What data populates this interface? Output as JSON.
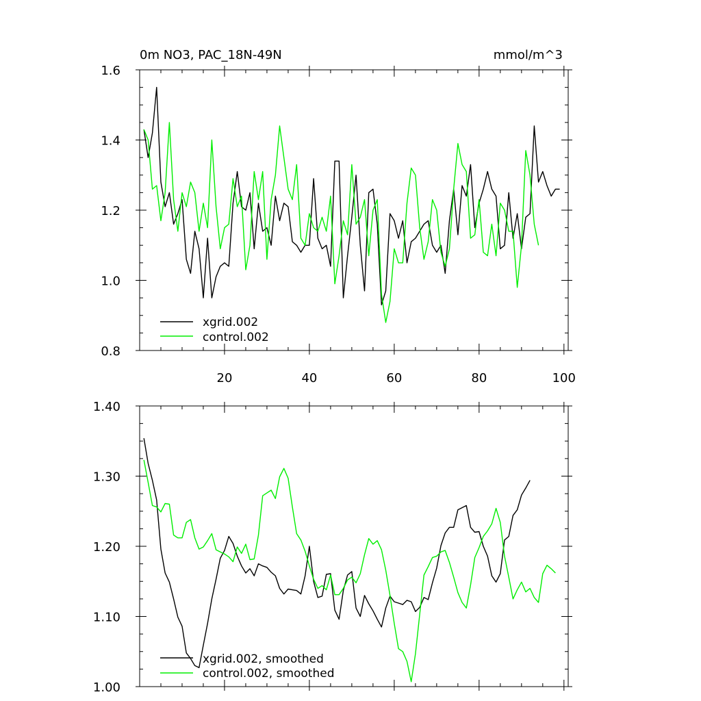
{
  "chart_data": [
    {
      "type": "line",
      "title": "0m NO3, PAC_18N-49N",
      "units": "mmol/m^3",
      "xlabel": "",
      "ylabel": "",
      "xlim": [
        0,
        101
      ],
      "ylim": [
        0.8,
        1.6
      ],
      "xticks": [
        20,
        40,
        60,
        80,
        100
      ],
      "xtick_labels": [
        "20",
        "40",
        "60",
        "80",
        "100"
      ],
      "yticks": [
        0.8,
        1.0,
        1.2,
        1.4,
        1.6
      ],
      "ytick_labels": [
        "0.8",
        "1.0",
        "1.2",
        "1.4",
        "1.6"
      ],
      "legend_position": "bottom-left",
      "series": [
        {
          "name": "xgrid.002",
          "color": "#000000",
          "values": [
            1.43,
            1.35,
            1.42,
            1.55,
            1.28,
            1.21,
            1.25,
            1.16,
            1.19,
            1.23,
            1.06,
            1.02,
            1.14,
            1.09,
            0.95,
            1.12,
            0.95,
            1.01,
            1.04,
            1.05,
            1.04,
            1.22,
            1.31,
            1.21,
            1.2,
            1.25,
            1.09,
            1.22,
            1.14,
            1.15,
            1.1,
            1.24,
            1.17,
            1.22,
            1.21,
            1.11,
            1.1,
            1.08,
            1.1,
            1.1,
            1.29,
            1.12,
            1.09,
            1.1,
            1.04,
            1.34,
            1.34,
            0.95,
            1.07,
            1.18,
            1.3,
            1.1,
            0.97,
            1.25,
            1.26,
            1.16,
            0.93,
            0.97,
            1.19,
            1.17,
            1.12,
            1.17,
            1.05,
            1.11,
            1.12,
            1.14,
            1.16,
            1.17,
            1.1,
            1.08,
            1.1,
            1.02,
            1.17,
            1.26,
            1.13,
            1.27,
            1.24,
            1.33,
            1.15,
            1.22,
            1.26,
            1.31,
            1.26,
            1.24,
            1.09,
            1.1,
            1.25,
            1.12,
            1.19,
            1.09,
            1.18,
            1.19,
            1.44,
            1.28,
            1.31,
            1.27,
            1.24,
            1.26,
            1.26
          ]
        },
        {
          "name": "control.002",
          "color": "#00ee00",
          "values": [
            1.43,
            1.4,
            1.26,
            1.27,
            1.17,
            1.25,
            1.45,
            1.23,
            1.14,
            1.25,
            1.21,
            1.28,
            1.25,
            1.14,
            1.22,
            1.15,
            1.4,
            1.21,
            1.09,
            1.15,
            1.16,
            1.29,
            1.21,
            1.24,
            1.03,
            1.1,
            1.31,
            1.23,
            1.31,
            1.06,
            1.23,
            1.3,
            1.44,
            1.35,
            1.26,
            1.23,
            1.33,
            1.12,
            1.1,
            1.19,
            1.15,
            1.14,
            1.18,
            1.14,
            1.24,
            0.99,
            1.07,
            1.17,
            1.13,
            1.33,
            1.16,
            1.18,
            1.23,
            1.07,
            1.2,
            1.23,
            0.96,
            0.88,
            0.94,
            1.09,
            1.05,
            1.05,
            1.22,
            1.32,
            1.3,
            1.15,
            1.06,
            1.11,
            1.23,
            1.2,
            1.08,
            1.04,
            1.09,
            1.26,
            1.39,
            1.33,
            1.31,
            1.12,
            1.13,
            1.23,
            1.08,
            1.07,
            1.16,
            1.07,
            1.22,
            1.2,
            1.14,
            1.14,
            0.98,
            1.1,
            1.37,
            1.3,
            1.16,
            1.1
          ]
        }
      ]
    },
    {
      "type": "line",
      "title": "",
      "xlabel": "",
      "ylabel": "",
      "xlim": [
        0,
        101
      ],
      "ylim": [
        1.0,
        1.4
      ],
      "xticks": [
        20,
        40,
        60,
        80,
        100
      ],
      "xtick_labels": [],
      "yticks": [
        1.0,
        1.1,
        1.2,
        1.3,
        1.4
      ],
      "ytick_labels": [
        "1.00",
        "1.10",
        "1.20",
        "1.30",
        "1.40"
      ],
      "legend_position": "bottom-left",
      "series": [
        {
          "name": "xgrid.002, smoothed",
          "color": "#000000",
          "values": [
            1.354,
            1.318,
            1.294,
            1.266,
            1.196,
            1.162,
            1.149,
            1.125,
            1.099,
            1.086,
            1.048,
            1.04,
            1.03,
            1.027,
            1.059,
            1.09,
            1.125,
            1.153,
            1.183,
            1.194,
            1.214,
            1.204,
            1.186,
            1.172,
            1.162,
            1.168,
            1.158,
            1.175,
            1.172,
            1.17,
            1.163,
            1.158,
            1.14,
            1.132,
            1.139,
            1.138,
            1.137,
            1.132,
            1.158,
            1.2,
            1.15,
            1.127,
            1.129,
            1.16,
            1.161,
            1.109,
            1.096,
            1.137,
            1.159,
            1.164,
            1.112,
            1.1,
            1.13,
            1.118,
            1.108,
            1.096,
            1.085,
            1.112,
            1.129,
            1.121,
            1.119,
            1.117,
            1.123,
            1.121,
            1.107,
            1.113,
            1.127,
            1.124,
            1.148,
            1.169,
            1.201,
            1.219,
            1.227,
            1.227,
            1.252,
            1.255,
            1.258,
            1.227,
            1.22,
            1.221,
            1.2,
            1.186,
            1.158,
            1.149,
            1.161,
            1.209,
            1.214,
            1.244,
            1.252,
            1.273,
            1.283,
            1.294
          ]
        },
        {
          "name": "control.002, smoothed",
          "color": "#00ee00",
          "values": [
            1.323,
            1.291,
            1.258,
            1.256,
            1.249,
            1.261,
            1.26,
            1.216,
            1.212,
            1.212,
            1.234,
            1.238,
            1.212,
            1.196,
            1.199,
            1.208,
            1.218,
            1.195,
            1.192,
            1.189,
            1.185,
            1.178,
            1.199,
            1.19,
            1.203,
            1.181,
            1.182,
            1.216,
            1.272,
            1.276,
            1.28,
            1.268,
            1.299,
            1.311,
            1.297,
            1.256,
            1.218,
            1.209,
            1.193,
            1.172,
            1.153,
            1.14,
            1.144,
            1.138,
            1.159,
            1.131,
            1.131,
            1.14,
            1.152,
            1.156,
            1.148,
            1.161,
            1.188,
            1.211,
            1.203,
            1.208,
            1.195,
            1.166,
            1.13,
            1.09,
            1.054,
            1.05,
            1.036,
            1.007,
            1.047,
            1.103,
            1.159,
            1.171,
            1.184,
            1.186,
            1.192,
            1.194,
            1.177,
            1.156,
            1.134,
            1.12,
            1.112,
            1.145,
            1.184,
            1.198,
            1.214,
            1.222,
            1.232,
            1.254,
            1.234,
            1.186,
            1.156,
            1.125,
            1.138,
            1.149,
            1.135,
            1.14,
            1.127,
            1.12,
            1.161,
            1.173,
            1.168,
            1.162
          ]
        }
      ]
    }
  ]
}
